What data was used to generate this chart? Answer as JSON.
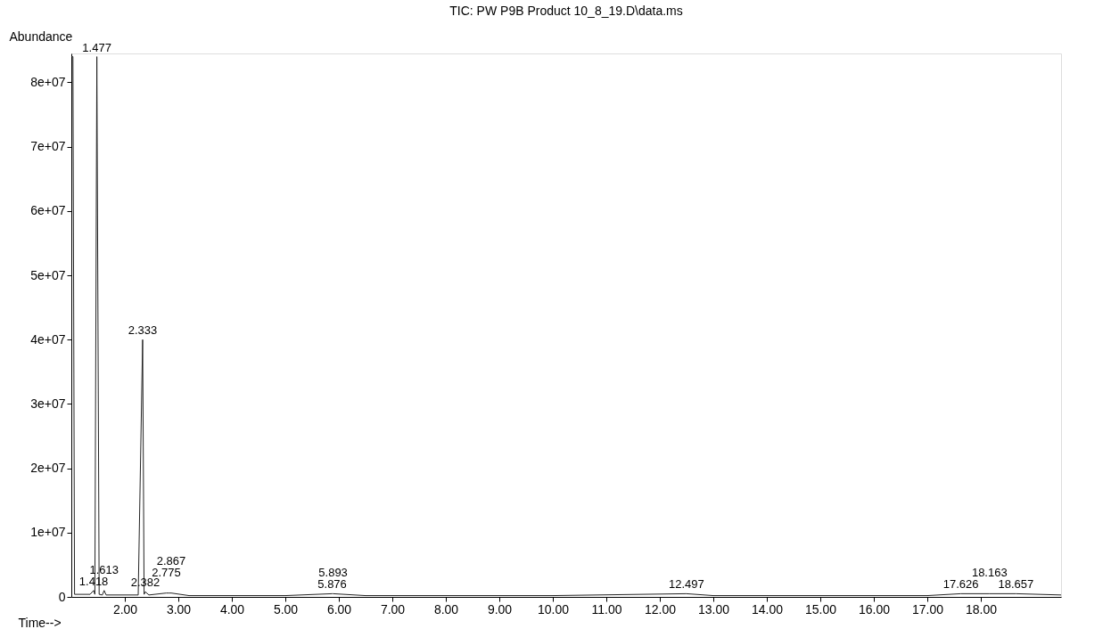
{
  "chart_data": {
    "type": "line",
    "title": "TIC: PW P9B Product 10_8_19.D\\data.ms",
    "xlabel": "Time-->",
    "ylabel": "Abundance",
    "x": [
      1.0,
      1.03,
      1.06,
      1.35,
      1.418,
      1.44,
      1.477,
      1.52,
      1.58,
      1.613,
      1.65,
      2.25,
      2.333,
      2.36,
      2.382,
      2.45,
      2.775,
      2.828,
      2.867,
      3.2,
      5.0,
      5.876,
      5.893,
      6.5,
      10.0,
      12.497,
      13.0,
      17.0,
      17.626,
      18.163,
      18.657,
      19.5
    ],
    "series": [
      {
        "color": "#222222",
        "values": [
          84000000,
          84000000,
          400000,
          400000,
          1000000,
          400000,
          84000000,
          400000,
          300000,
          1000000,
          300000,
          300000,
          40000000,
          400000,
          800000,
          300000,
          600000,
          600000,
          600000,
          200000,
          200000,
          500000,
          500000,
          200000,
          200000,
          500000,
          200000,
          200000,
          500000,
          500000,
          500000,
          300000
        ]
      }
    ],
    "xlim": [
      1.0,
      19.5
    ],
    "ylim": [
      0,
      84500000
    ],
    "xticks": [
      {
        "value": 2,
        "label": "2.00"
      },
      {
        "value": 3,
        "label": "3.00"
      },
      {
        "value": 4,
        "label": "4.00"
      },
      {
        "value": 5,
        "label": "5.00"
      },
      {
        "value": 6,
        "label": "6.00"
      },
      {
        "value": 7,
        "label": "7.00"
      },
      {
        "value": 8,
        "label": "8.00"
      },
      {
        "value": 9,
        "label": "9.00"
      },
      {
        "value": 10,
        "label": "10.00"
      },
      {
        "value": 11,
        "label": "11.00"
      },
      {
        "value": 12,
        "label": "12.00"
      },
      {
        "value": 13,
        "label": "13.00"
      },
      {
        "value": 14,
        "label": "14.00"
      },
      {
        "value": 15,
        "label": "15.00"
      },
      {
        "value": 16,
        "label": "16.00"
      },
      {
        "value": 17,
        "label": "17.00"
      },
      {
        "value": 18,
        "label": "18.00"
      }
    ],
    "yticks": [
      0,
      {
        "value": 10000000,
        "label": "1e+07"
      },
      {
        "value": 20000000,
        "label": "2e+07"
      },
      {
        "value": 30000000,
        "label": "3e+07"
      },
      {
        "value": 40000000,
        "label": "4e+07"
      },
      {
        "value": 50000000,
        "label": "5e+07"
      },
      {
        "value": 60000000,
        "label": "6e+07"
      },
      {
        "value": 70000000,
        "label": "7e+07"
      },
      {
        "value": 80000000,
        "label": "8e+07"
      }
    ],
    "grid": false,
    "annotations": [
      {
        "text": "1.477",
        "x": 1.477,
        "y": 84000000
      },
      {
        "text": "2.333",
        "x": 2.333,
        "y": 40000000
      },
      {
        "text": "1.418",
        "x": 1.418,
        "y": 1000000
      },
      {
        "text": "1.613",
        "x": 1.613,
        "y": 1000000
      },
      {
        "text": "2.382",
        "x": 2.382,
        "y": 800000
      },
      {
        "text": "2.775",
        "x": 2.775,
        "y": 600000
      },
      {
        "text": "2.867",
        "x": 2.867,
        "y": 600000
      },
      {
        "text": "5.876",
        "x": 5.876,
        "y": 500000
      },
      {
        "text": "5.893",
        "x": 5.893,
        "y": 500000
      },
      {
        "text": "12.497",
        "x": 12.497,
        "y": 500000
      },
      {
        "text": "17.626",
        "x": 17.626,
        "y": 500000
      },
      {
        "text": "18.163",
        "x": 18.163,
        "y": 500000
      },
      {
        "text": "18.657",
        "x": 18.657,
        "y": 500000
      }
    ]
  }
}
